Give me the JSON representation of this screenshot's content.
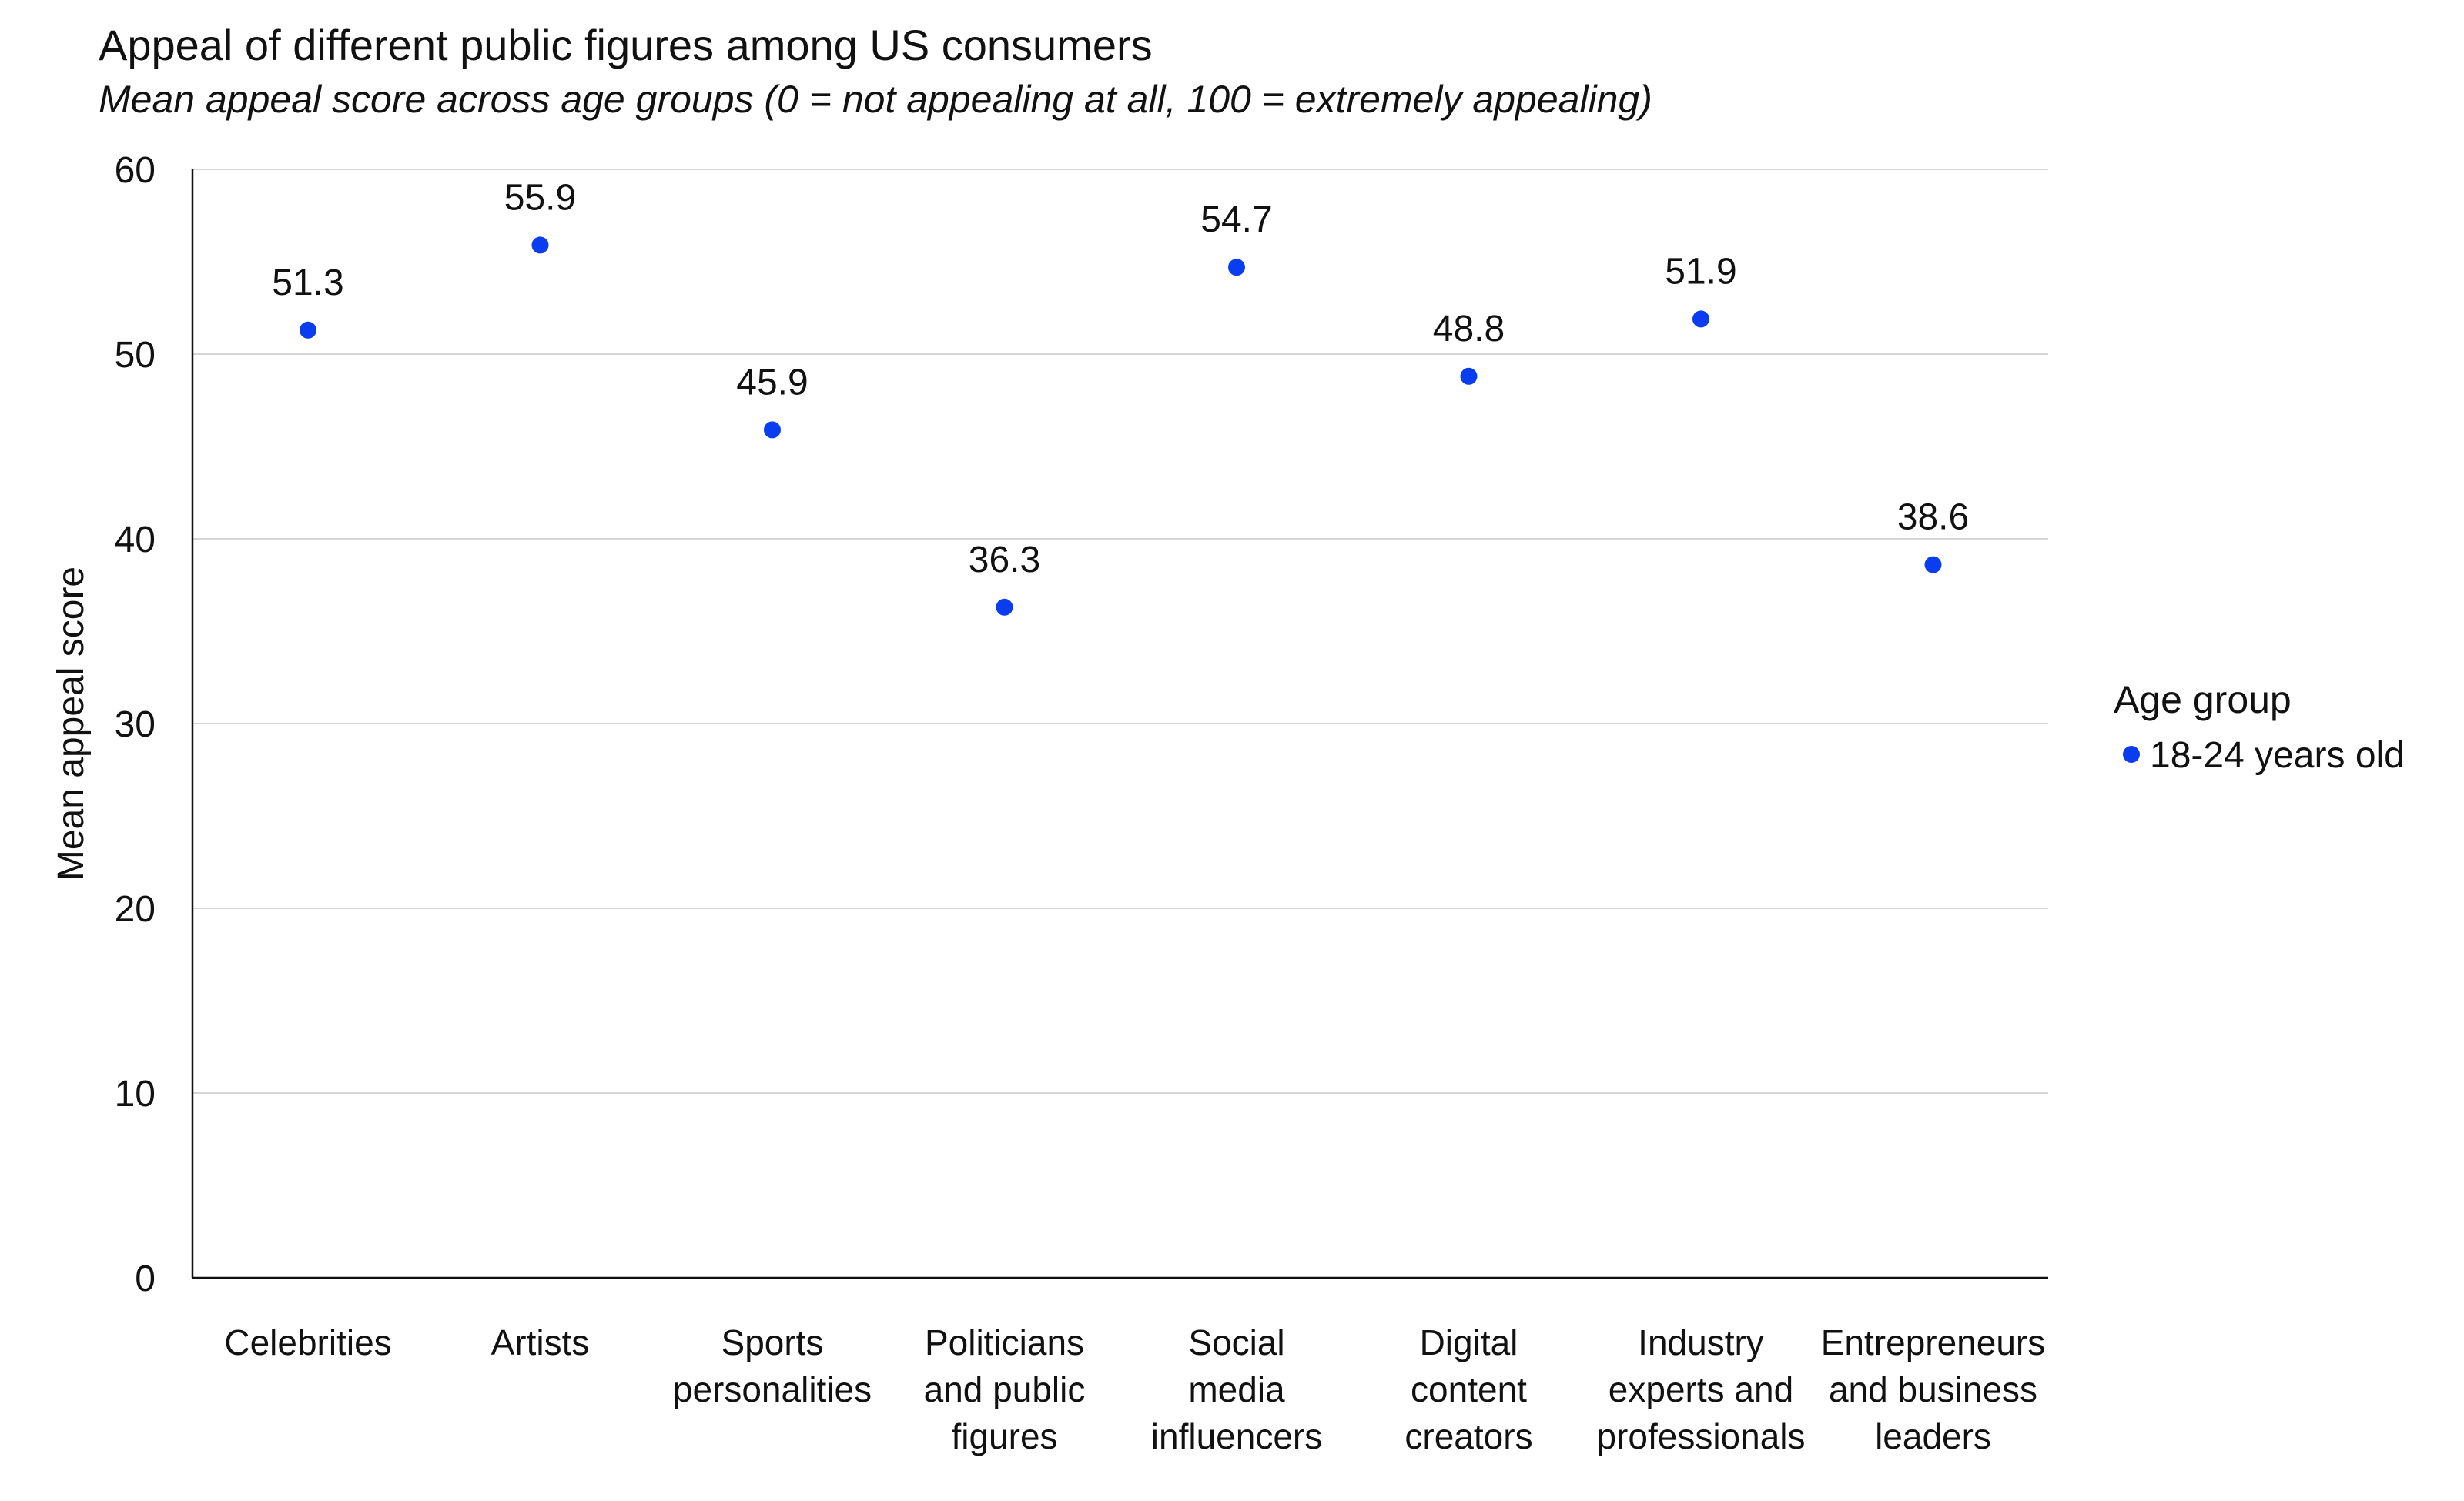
{
  "chart_data": {
    "type": "scatter",
    "title": "Appeal of different public figures among US consumers",
    "subtitle": "Mean appeal score across age groups (0 = not appealing at all, 100 = extremely appealing)",
    "xlabel": "",
    "ylabel": "Mean appeal score",
    "ylim": [
      0,
      60
    ],
    "yticks": [
      0,
      10,
      20,
      30,
      40,
      50,
      60
    ],
    "grid": true,
    "categories": [
      [
        "Celebrities"
      ],
      [
        "Artists"
      ],
      [
        "Sports",
        "personalities"
      ],
      [
        "Politicians",
        "and public",
        "figures"
      ],
      [
        "Social",
        "media",
        "influencers"
      ],
      [
        "Digital",
        "content",
        "creators"
      ],
      [
        "Industry",
        "experts and",
        "professionals"
      ],
      [
        "Entrepreneurs",
        "and business",
        "leaders"
      ]
    ],
    "legend": {
      "title": "Age group",
      "position": "right"
    },
    "series": [
      {
        "name": "18-24 years old",
        "color": "#0a3cf0",
        "values": [
          51.3,
          55.9,
          45.9,
          36.3,
          54.7,
          48.8,
          51.9,
          38.6
        ],
        "labels": [
          "51.3",
          "55.9",
          "45.9",
          "36.3",
          "54.7",
          "48.8",
          "51.9",
          "38.6"
        ]
      }
    ]
  }
}
